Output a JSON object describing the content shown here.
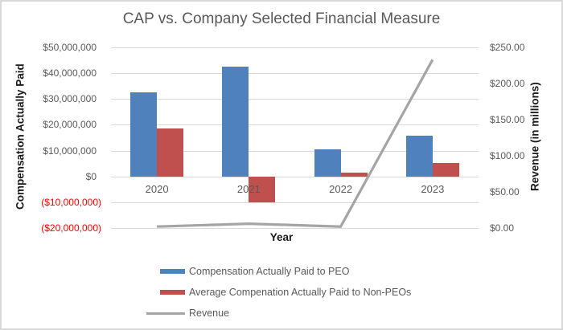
{
  "title": "CAP vs. Company Selected Financial Measure",
  "chart_data": {
    "type": "combo",
    "title": "CAP vs. Company Selected Financial Measure",
    "categories": [
      "2020",
      "2021",
      "2022",
      "2023"
    ],
    "series": [
      {
        "name": "Compensation Actually Paid to PEO",
        "type": "bar",
        "axis": "left",
        "color": "#4F81BD",
        "values": [
          32500000,
          42500000,
          10400000,
          15700000
        ]
      },
      {
        "name": "Average Compenation Actually Paid to Non-PEOs",
        "type": "bar",
        "axis": "left",
        "color": "#C0504D",
        "values": [
          18600000,
          -10100000,
          1500000,
          5200000
        ]
      },
      {
        "name": "Revenue",
        "type": "line",
        "axis": "right",
        "color": "#A5A5A5",
        "values": [
          2,
          6,
          2,
          233
        ]
      }
    ],
    "x_axis": {
      "title": "Year"
    },
    "left_axis": {
      "title": "Compensation Actually Paid",
      "min": -20000000,
      "max": 50000000,
      "step": 10000000,
      "tick_labels": [
        "$50,000,000",
        "$40,000,000",
        "$30,000,000",
        "$20,000,000",
        "$10,000,000",
        "$0",
        "($10,000,000)",
        "($20,000,000)"
      ]
    },
    "right_axis": {
      "title": "Revenue (in millions)",
      "min": 0,
      "max": 250,
      "step": 50,
      "tick_labels": [
        "$250.00",
        "$200.00",
        "$150.00",
        "$100.00",
        "$50.00",
        "$0.00"
      ]
    },
    "grid": true,
    "legend_position": "bottom",
    "legend": [
      "Compensation Actually Paid to PEO",
      "Average Compenation Actually Paid to Non-PEOs",
      "Revenue"
    ]
  },
  "colors": {
    "bar_blue": "#4F81BD",
    "bar_red": "#C0504D",
    "line_gray": "#A5A5A5",
    "tick_text": "#595959",
    "negative_tick_text": "#FF0000",
    "gridline": "#D9D9D9",
    "title_text": "#595959",
    "border": "#D9D9D9"
  }
}
